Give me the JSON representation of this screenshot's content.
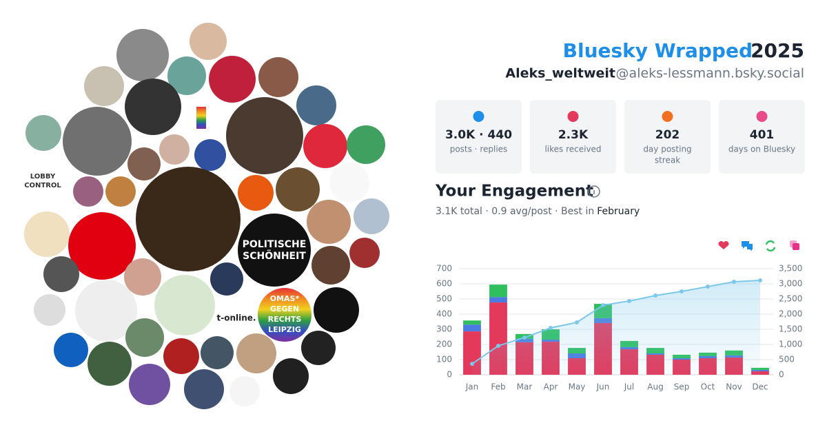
{
  "header": {
    "title": "Bluesky Wrapped",
    "year": "2025",
    "name": "Aleks_weltweit",
    "handle": "@aleks-lessmann.bsky.social"
  },
  "stats": [
    {
      "value": "3.0K · 440",
      "label": "posts · replies"
    },
    {
      "value": "2.3K",
      "label": "likes received"
    },
    {
      "value": "202",
      "label_lines": [
        "day posting",
        "streak"
      ]
    },
    {
      "value": "401",
      "label": "days on Bluesky"
    }
  ],
  "engagement": {
    "heading": "Your Engagement",
    "summary": "3.1K total · 0.9 avg/post · Best in",
    "best": "February"
  },
  "avatars": {
    "politische": [
      "POLITISCHE",
      "SCHÖNHEIT"
    ],
    "omas": [
      "OMAS*",
      "GEGEN",
      "RECHTS",
      "LEIPZIG"
    ],
    "tonline": "t-online.",
    "lobby": [
      "LOBBY",
      "CONTROL"
    ]
  },
  "chart_data": {
    "type": "stacked-bar-line",
    "categories": [
      "Jan",
      "Feb",
      "Mar",
      "Apr",
      "May",
      "Jun",
      "Jul",
      "Aug",
      "Sep",
      "Oct",
      "Nov",
      "Dec"
    ],
    "series": [
      {
        "color": "#e3395b",
        "values": [
          286,
          477,
          214,
          218,
          109,
          341,
          168,
          132,
          100,
          109,
          114,
          23
        ]
      },
      {
        "color": "#4b7be0",
        "values": [
          45,
          36,
          23,
          14,
          32,
          32,
          14,
          9,
          9,
          14,
          14,
          9
        ]
      },
      {
        "color": "#2fbf5f",
        "values": [
          27,
          82,
          32,
          68,
          36,
          95,
          41,
          36,
          23,
          23,
          32,
          14
        ]
      },
      {
        "color": "#7cc8ea",
        "axis": "y2",
        "values": [
          360,
          955,
          1227,
          1545,
          1727,
          2295,
          2432,
          2614,
          2750,
          2909,
          3068,
          3114
        ]
      }
    ],
    "ylim": [
      0,
      700
    ],
    "yticks": [
      0,
      100,
      200,
      300,
      400,
      500,
      600,
      700
    ],
    "y2lim": [
      0,
      3500
    ],
    "y2ticks": [
      0,
      500,
      {
        "value": 1000,
        "label": "1,000"
      },
      {
        "value": 1500,
        "label": "1,500"
      },
      {
        "value": 2000,
        "label": "2,000"
      },
      {
        "value": 2500,
        "label": "2,500"
      },
      {
        "value": 3000,
        "label": "3,000"
      },
      {
        "value": 3500,
        "label": "3,500"
      }
    ],
    "grid": true
  }
}
